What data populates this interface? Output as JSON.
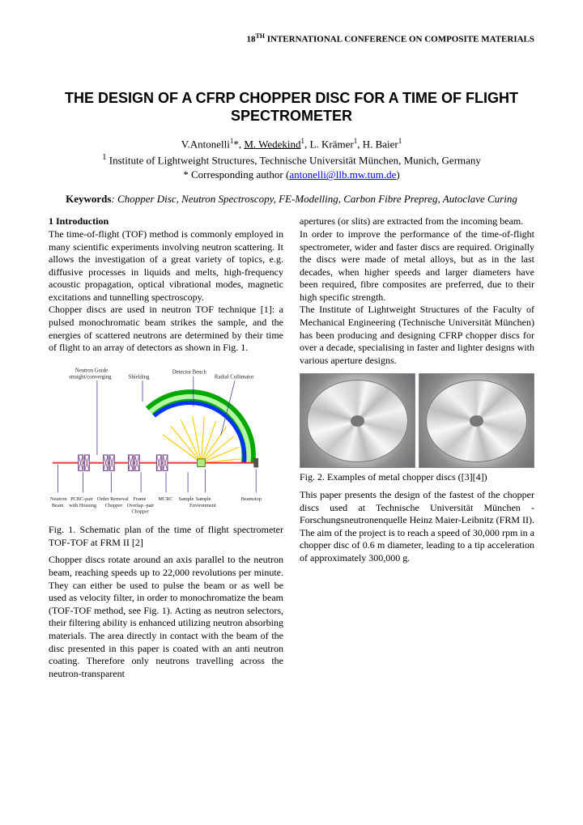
{
  "conference_header": "18<sup>TH</sup> INTERNATIONAL CONFERENCE ON COMPOSITE MATERIALS",
  "title": "THE DESIGN OF A CFRP CHOPPER DISC FOR A TIME OF FLIGHT SPECTROMETER",
  "authors_html": "V.Antonelli<sup>1</sup>*, <span class='underline'>M. Wedekind</span><sup>1</sup>, L. Krämer<sup>1</sup>, H. Baier<sup>1</sup>",
  "affiliation": "<sup>1</sup> Institute of Lightweight Structures, Technische Universität München, Munich, Germany",
  "corresponding_label": "* Corresponding author (",
  "corresponding_email": "antonelli@llb.mw.tum.de",
  "corresponding_close": ")",
  "keywords_label": "Keywords",
  "keywords_text": ": Chopper Disc, Neutron Spectroscopy, FE-Modelling, Carbon Fibre Prepreg, Autoclave Curing",
  "section1_heading": "1  Introduction",
  "col_left_p1": "The time-of-flight (TOF) method is commonly employed in many scientific experiments involving neutron scattering. It allows the investigation of a great variety of topics, e.g. diffusive processes in liquids and melts, high-frequency acoustic propagation, optical vibrational modes, magnetic excitations and tunnelling spectroscopy.",
  "col_left_p2": "Chopper discs are used in neutron TOF technique [1]: a pulsed monochromatic beam strikes the sample, and the energies of scattered neutrons are determined by their time of flight to an array of detectors as shown in Fig. 1.",
  "fig1_caption": "Fig. 1. Schematic plan of the time of flight spectrometer TOF-TOF at FRM II [2]",
  "col_left_p3": "Chopper discs rotate around an axis parallel to the neutron beam, reaching speeds up to 22,000 revolutions per minute. They can either be used to pulse the beam or as well be used as velocity filter, in order to monochromatize the beam (TOF-TOF method, see Fig. 1). Acting as neutron selectors, their filtering ability is enhanced utilizing neutron absorbing materials. The area directly in contact with the beam of the disc presented in this paper is coated with an anti neutron coating. Therefore only neutrons travelling across the neutron-transparent",
  "col_right_p1": "apertures (or slits) are extracted from the incoming beam.",
  "col_right_p2": "In order to improve the performance of the time-of-flight spectrometer, wider and faster discs are required. Originally the discs were made of metal alloys, but as in the last decades, when higher speeds and larger diameters have been required, fibre composites are preferred, due to their high specific strength.",
  "col_right_p3": "The Institute of Lightweight Structures of the Faculty of Mechanical Engineering (Technische Universität München) has been producing and designing CFRP chopper discs for over a decade, specialising in faster and lighter designs with various aperture designs.",
  "fig2_caption": "Fig. 2. Examples of metal chopper discs ([3][4])",
  "col_right_p4": "This paper presents the design of the fastest of the chopper discs used at Technische Universität München - Forschungsneutronenquelle Heinz Maier-Leibnitz (FRM II). The aim of the project is to reach a speed of 30,000 rpm in a chopper disc of 0.6 m diameter, leading to a tip acceleration of approximately 300,000 g.",
  "schematic": {
    "labels_top": [
      "Neutron Guide\nstraight/converging",
      "Shielding",
      "Detector Bench",
      "Radial Collimator"
    ],
    "labels_bottom": [
      "Neutron\nBeam",
      "PCRC-pair\nwith Housing",
      "Order Removal\nChopper",
      "Frame\nOverlap -pair\nChopper",
      "MCRC",
      "Sample",
      "Sample\nEnvironment",
      "Beamstop"
    ],
    "colors": {
      "shield_outer": "#00a800",
      "shield_inner": "#b6f7a3",
      "detector": "#0033ff",
      "guide": "#ff2a2a",
      "collimator": "#ffcc00",
      "leader": "#3a3a9c"
    }
  }
}
